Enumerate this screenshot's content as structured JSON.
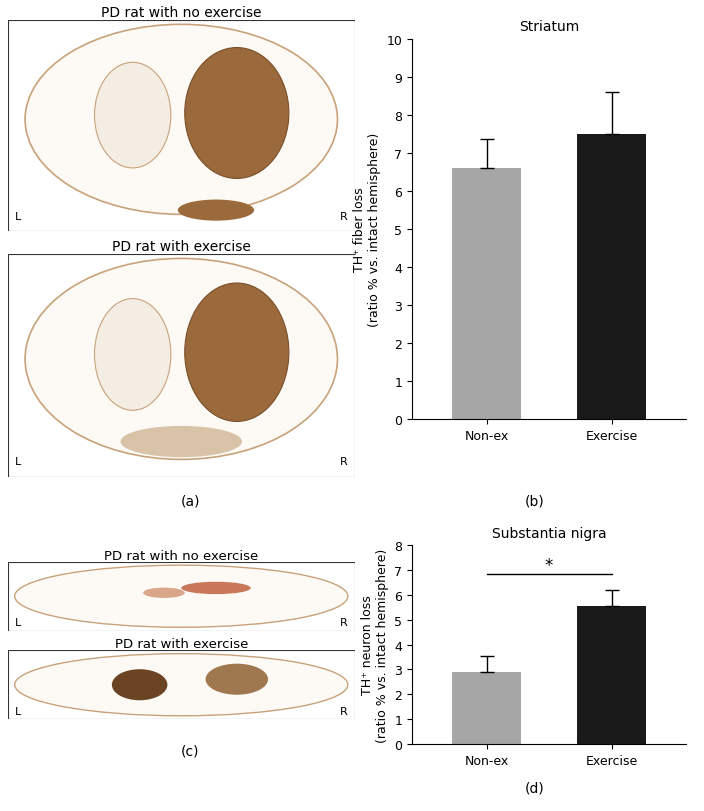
{
  "chart_data": [
    {
      "type": "bar",
      "panel": "(b)",
      "title": "Striatum",
      "ylabel": "TH⁺ fiber loss\n(ratio % vs. intact hemisphere)",
      "categories": [
        "Non-ex",
        "Exercise"
      ],
      "values": [
        6.6,
        7.5
      ],
      "errors": [
        0.75,
        1.1
      ],
      "colors": [
        "#a6a6a6",
        "#1a1a1a"
      ],
      "ylim": [
        0,
        10
      ],
      "yticks": [
        0,
        1,
        2,
        3,
        4,
        5,
        6,
        7,
        8,
        9,
        10
      ]
    },
    {
      "type": "bar",
      "panel": "(d)",
      "title": "Substantia nigra",
      "ylabel": "TH⁺ neuron loss\n(ratio % vs. intact hemisphere)",
      "categories": [
        "Non-ex",
        "Exercise"
      ],
      "values": [
        2.9,
        5.55
      ],
      "errors": [
        0.65,
        0.65
      ],
      "colors": [
        "#a6a6a6",
        "#1a1a1a"
      ],
      "ylim": [
        0,
        8
      ],
      "yticks": [
        0,
        1,
        2,
        3,
        4,
        5,
        6,
        7,
        8
      ],
      "annotations": [
        {
          "text": "*",
          "between": [
            "Non-ex",
            "Exercise"
          ]
        }
      ]
    }
  ],
  "image_panels": [
    {
      "panel": "(a)",
      "kind": "striatum",
      "images": [
        {
          "title": "PD rat with no exercise",
          "left_label": "L",
          "right_label": "R"
        },
        {
          "title": "PD rat with exercise",
          "left_label": "L",
          "right_label": "R"
        }
      ]
    },
    {
      "panel": "(c)",
      "kind": "nigra",
      "images": [
        {
          "title": "PD rat with no exercise",
          "left_label": "L",
          "right_label": "R"
        },
        {
          "title": "PD rat with exercise",
          "left_label": "L",
          "right_label": "R"
        }
      ]
    }
  ]
}
